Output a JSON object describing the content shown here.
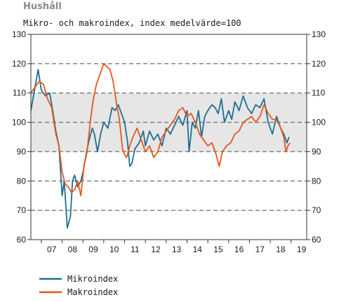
{
  "chart_data": {
    "type": "line",
    "title": "Hushåll",
    "subtitle": "Mikro- och makroindex, index medelvärde=100",
    "xlabel": "",
    "ylabel": "",
    "ylim": [
      60,
      130
    ],
    "xlim": [
      2006.5,
      2019.75
    ],
    "y_ticks": [
      60,
      70,
      80,
      90,
      100,
      110,
      120,
      130
    ],
    "x_ticks": [
      "07",
      "08",
      "09",
      "10",
      "11",
      "12",
      "13",
      "14",
      "15",
      "16",
      "17",
      "18",
      "19"
    ],
    "shaded_band": [
      90,
      110
    ],
    "dashed_gridlines": [
      70,
      80,
      90,
      100,
      110,
      120
    ],
    "legend_position": "bottom-left",
    "series": [
      {
        "name": "Mikroindex",
        "color": "#1f6e93",
        "x": [
          2006.5,
          2006.7,
          2006.85,
          2007.0,
          2007.2,
          2007.4,
          2007.55,
          2007.7,
          2007.85,
          2008.0,
          2008.1,
          2008.25,
          2008.4,
          2008.5,
          2008.6,
          2008.75,
          2008.9,
          2009.0,
          2009.15,
          2009.3,
          2009.45,
          2009.55,
          2009.7,
          2009.85,
          2010.0,
          2010.2,
          2010.4,
          2010.55,
          2010.7,
          2010.85,
          2011.0,
          2011.15,
          2011.25,
          2011.35,
          2011.5,
          2011.7,
          2011.9,
          2012.0,
          2012.2,
          2012.4,
          2012.6,
          2012.8,
          2013.0,
          2013.2,
          2013.4,
          2013.6,
          2013.8,
          2014.0,
          2014.1,
          2014.25,
          2014.4,
          2014.55,
          2014.7,
          2014.85,
          2015.0,
          2015.2,
          2015.35,
          2015.5,
          2015.65,
          2015.8,
          2016.0,
          2016.15,
          2016.3,
          2016.5,
          2016.7,
          2016.9,
          2017.1,
          2017.3,
          2017.5,
          2017.7,
          2017.9,
          2018.1,
          2018.3,
          2018.5,
          2018.65,
          2018.8,
          2018.9
        ],
        "values": [
          104,
          112,
          118,
          111,
          109,
          110,
          104,
          97,
          92,
          75,
          80,
          64,
          68,
          80,
          82,
          78,
          80,
          83,
          89,
          94,
          98,
          96,
          90,
          96,
          100,
          98,
          105,
          104,
          106,
          103,
          100,
          93,
          85,
          86,
          91,
          93,
          97,
          92,
          97,
          94,
          96,
          92,
          98,
          96,
          99,
          102,
          99,
          104,
          90,
          100,
          98,
          104,
          95,
          102,
          104,
          106,
          105,
          103,
          108,
          100,
          104,
          101,
          107,
          104,
          109,
          105,
          103,
          106,
          105,
          108,
          100,
          96,
          102,
          98,
          96,
          93,
          95
        ]
      },
      {
        "name": "Makroindex",
        "color": "#e8561c",
        "x": [
          2006.5,
          2006.7,
          2006.9,
          2007.1,
          2007.3,
          2007.5,
          2007.7,
          2007.85,
          2008.0,
          2008.15,
          2008.3,
          2008.45,
          2008.6,
          2008.75,
          2008.9,
          2009.05,
          2009.2,
          2009.35,
          2009.5,
          2009.65,
          2009.85,
          2010.0,
          2010.15,
          2010.3,
          2010.45,
          2010.6,
          2010.75,
          2010.9,
          2011.0,
          2011.1,
          2011.25,
          2011.4,
          2011.6,
          2011.8,
          2012.0,
          2012.2,
          2012.4,
          2012.6,
          2012.8,
          2013.0,
          2013.2,
          2013.4,
          2013.6,
          2013.8,
          2014.0,
          2014.2,
          2014.4,
          2014.6,
          2014.8,
          2015.0,
          2015.2,
          2015.4,
          2015.55,
          2015.7,
          2015.9,
          2016.1,
          2016.3,
          2016.5,
          2016.7,
          2016.9,
          2017.1,
          2017.3,
          2017.5,
          2017.7,
          2017.9,
          2018.1,
          2018.3,
          2018.5,
          2018.65,
          2018.75,
          2018.85,
          2018.95
        ],
        "values": [
          110,
          112,
          114,
          113,
          108,
          105,
          96,
          92,
          83,
          79,
          78,
          76,
          77,
          80,
          75,
          85,
          90,
          100,
          108,
          113,
          117,
          120,
          119,
          118,
          114,
          107,
          101,
          91,
          89,
          88,
          92,
          95,
          98,
          94,
          90,
          92,
          88,
          90,
          95,
          97,
          99,
          101,
          104,
          105,
          102,
          103,
          100,
          96,
          94,
          92,
          93,
          89,
          85,
          90,
          92,
          93,
          96,
          97,
          100,
          101,
          102,
          100,
          102,
          106,
          103,
          101,
          101,
          98,
          95,
          90,
          92,
          93
        ]
      }
    ]
  },
  "legend": {
    "items": [
      "Mikroindex",
      "Makroindex"
    ]
  }
}
